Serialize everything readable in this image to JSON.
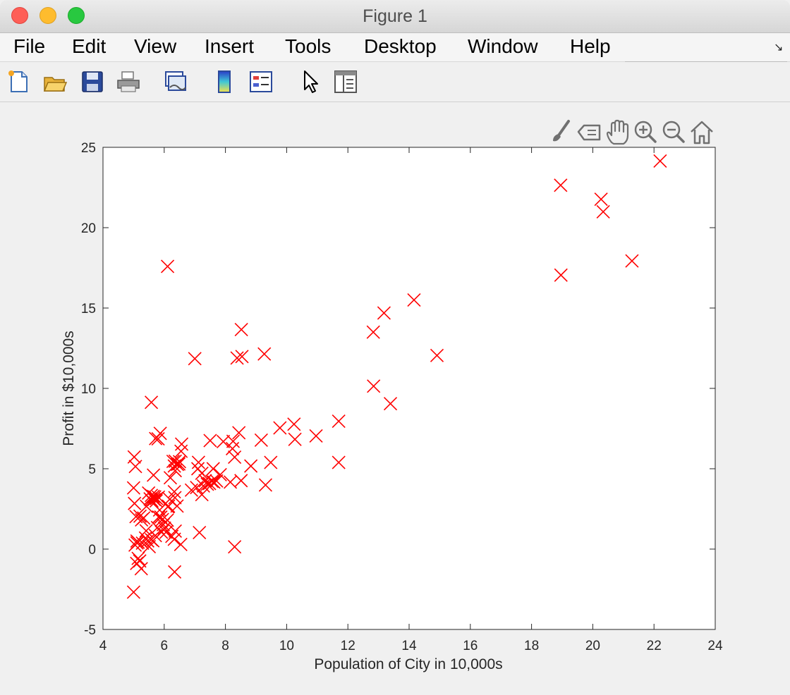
{
  "window": {
    "title": "Figure 1"
  },
  "menu": {
    "items": [
      "File",
      "Edit",
      "View",
      "Insert",
      "Tools",
      "Desktop",
      "Window",
      "Help"
    ]
  },
  "toolbar": {
    "icons": [
      "new-figure-icon",
      "open-file-icon",
      "save-icon",
      "print-icon",
      "link-plot-icon",
      "colorbar-icon",
      "legend-icon",
      "edit-plot-arrow-icon",
      "property-inspector-icon"
    ]
  },
  "axes_toolbar": {
    "icons": [
      "brush-icon",
      "data-tip-icon",
      "pan-hand-icon",
      "zoom-in-icon",
      "zoom-out-icon",
      "home-icon"
    ]
  },
  "colors": {
    "marker": "#ff0000",
    "axes_background": "#ffffff",
    "figure_background": "#f0f0f0"
  },
  "chart_data": {
    "type": "scatter",
    "title": "",
    "xlabel": "Population of City in 10,000s",
    "ylabel": "Profit in $10,000s",
    "xlim": [
      4,
      24
    ],
    "ylim": [
      -5,
      25
    ],
    "xticks": [
      4,
      6,
      8,
      10,
      12,
      14,
      16,
      18,
      20,
      22,
      24
    ],
    "yticks": [
      -5,
      0,
      5,
      10,
      15,
      20,
      25
    ],
    "grid": false,
    "marker": "x",
    "marker_color": "#ff0000",
    "series": [
      {
        "x": [
          22.2,
          18.95,
          20.27,
          20.34,
          18.96,
          21.28,
          6.11,
          14.16,
          13.18,
          12.83,
          14.91,
          12.84,
          13.39,
          8.52,
          8.38,
          8.54,
          9.27,
          7.0,
          5.58,
          11.7,
          11.7,
          10.24,
          10.27,
          9.78,
          10.96,
          8.44,
          9.17,
          9.48,
          9.31,
          8.83,
          8.3,
          8.23,
          8.51,
          8.16,
          8.25,
          7.93,
          7.83,
          7.6,
          7.56,
          7.48,
          7.5,
          7.34,
          7.23,
          7.23,
          7.12,
          7.1,
          7.06,
          6.89,
          6.57,
          6.48,
          6.5,
          6.43,
          6.36,
          6.33,
          6.29,
          6.36,
          6.2,
          6.18,
          6.14,
          6.1,
          5.87,
          5.8,
          5.72,
          5.65,
          5.58,
          5.54,
          5.6,
          5.67,
          5.75,
          5.85,
          5.89,
          5.94,
          5.97,
          6.06,
          6.33,
          6.36,
          6.42,
          6.54,
          5.49,
          5.42,
          5.33,
          5.26,
          5.21,
          5.15,
          5.11,
          5.05,
          5.03,
          5.0,
          5.02,
          5.06,
          5.08,
          5.11,
          5.15,
          5.25,
          5.29,
          5.39,
          5.46,
          5.51,
          5.58,
          5.63,
          5.71,
          5.78,
          5.82,
          5.91,
          6.34,
          5.0,
          5.2,
          5.1,
          5.41,
          5.57,
          5.64,
          5.69,
          5.74,
          5.81,
          6.01,
          6.12,
          6.25,
          6.33,
          7.15,
          8.3,
          6.35,
          6.55,
          7.28,
          7.41,
          7.62,
          7.71
        ],
        "y": [
          24.15,
          22.64,
          21.77,
          20.99,
          17.05,
          17.93,
          17.59,
          15.5,
          14.69,
          13.5,
          12.05,
          10.14,
          9.05,
          13.66,
          11.89,
          11.98,
          12.14,
          11.85,
          9.13,
          7.96,
          5.39,
          7.77,
          6.83,
          7.54,
          7.04,
          7.24,
          6.78,
          5.39,
          3.99,
          5.17,
          5.72,
          6.25,
          4.26,
          4.17,
          6.71,
          6.69,
          4.63,
          5.0,
          4.22,
          4.08,
          6.75,
          4.25,
          3.39,
          4.72,
          5.4,
          5.0,
          3.83,
          3.67,
          6.53,
          5.3,
          5.44,
          5.27,
          5.47,
          5.17,
          5.46,
          4.88,
          4.44,
          3.1,
          2.67,
          1.8,
          7.2,
          6.86,
          6.88,
          4.6,
          3.34,
          3.13,
          2.99,
          3.09,
          3.15,
          2.43,
          1.99,
          1.84,
          1.52,
          1.05,
          0.61,
          1.12,
          2.68,
          0.29,
          3.49,
          2.66,
          1.93,
          1.82,
          2.05,
          0.43,
          0.5,
          0.25,
          2.84,
          3.81,
          5.73,
          5.14,
          2.02,
          0.38,
          -0.58,
          -1.22,
          0.37,
          0.69,
          0.51,
          0.15,
          0.59,
          0.52,
          0.84,
          1.34,
          1.99,
          1.05,
          -1.42,
          -2.68,
          -0.74,
          -0.89,
          1.14,
          3.07,
          3.28,
          3.25,
          3.0,
          3.23,
          1.3,
          2.63,
          0.79,
          3.57,
          1.03,
          0.14,
          3.2,
          6.09,
          3.93,
          4.04,
          4.17,
          4.24
        ]
      }
    ]
  }
}
